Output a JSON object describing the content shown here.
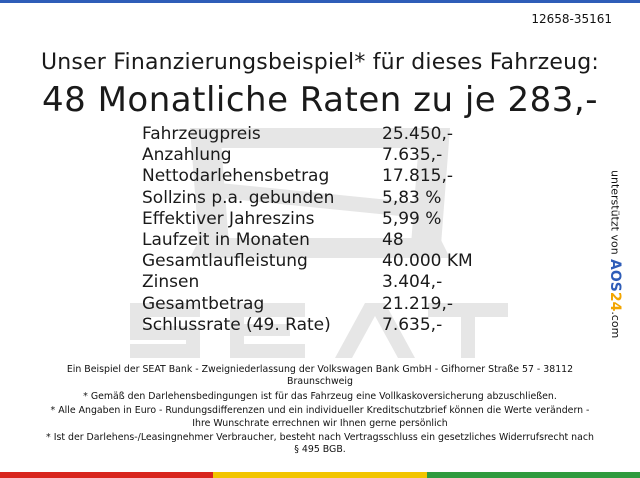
{
  "offer_id": "12658-35161",
  "headline": {
    "sub": "Unser Finanzierungsbeispiel* für dieses Fahrzeug:",
    "main": "48 Monatliche Raten zu je 283,-"
  },
  "terms": [
    {
      "label": "Fahrzeugpreis",
      "value": "25.450,-"
    },
    {
      "label": "Anzahlung",
      "value": "7.635,-"
    },
    {
      "label": "Nettodarlehensbetrag",
      "value": "17.815,-"
    },
    {
      "label": "Sollzins p.a. gebunden",
      "value": "5,83 %"
    },
    {
      "label": "Effektiver Jahreszins",
      "value": "5,99 %"
    },
    {
      "label": "Laufzeit in Monaten",
      "value": "48"
    },
    {
      "label": "Gesamtlaufleistung",
      "value": "40.000 KM"
    },
    {
      "label": "Zinsen",
      "value": "3.404,-"
    },
    {
      "label": "Gesamtbetrag",
      "value": "21.219,-"
    },
    {
      "label": "Schlussrate (49. Rate)",
      "value": "7.635,-"
    }
  ],
  "side_note": {
    "text": "unterstützt von",
    "brand_a": "AOS",
    "brand_b": "24",
    "brand_tld": ".com"
  },
  "watermark_logo_text": "SEAT",
  "disclaimer": [
    "Ein Beispiel der SEAT Bank - Zweigniederlassung der Volkswagen Bank GmbH - Gifhorner Straße 57 - 38112 Braunschweig",
    "* Gemäß den Darlehensbedingungen ist für das Fahrzeug eine Vollkaskoversicherung abzuschließen.",
    "* Alle Angaben in Euro - Rundungsdifferenzen und ein individueller Kreditschutzbrief können die Werte verändern - Ihre Wunschrate errechnen wir Ihnen gerne persönlich",
    "* Ist der Darlehens-/Leasingnehmer Verbraucher, besteht nach Vertragsschluss ein gesetzliches Widerrufsrecht nach § 495 BGB."
  ],
  "colors": {
    "top_bar": "#2f5db8",
    "bottom_red": "#d8251d",
    "bottom_yellow": "#f2c500",
    "bottom_green": "#2f9a3e",
    "watermark": "#e6e6e6"
  }
}
